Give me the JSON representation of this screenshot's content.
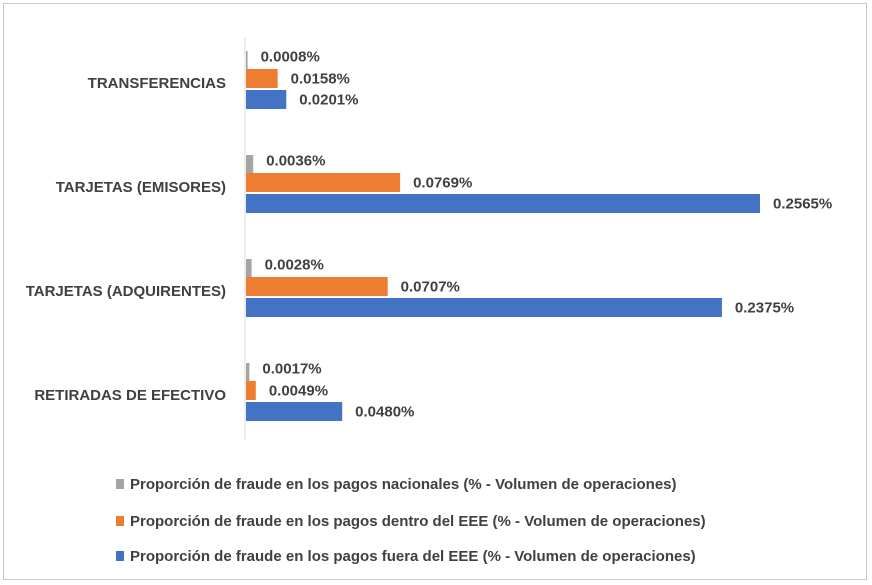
{
  "chart_data": {
    "type": "bar",
    "orientation": "horizontal",
    "categories": [
      "TRANSFERENCIAS",
      "TARJETAS (EMISORES)",
      "TARJETAS (ADQUIRENTES)",
      "RETIRADAS DE EFECTIVO"
    ],
    "series": [
      {
        "name": "Proporción de fraude en los pagos nacionales (% - Volumen de operaciones)",
        "color": "#a5a5a5",
        "values": [
          0.0008,
          0.0036,
          0.0028,
          0.0017
        ],
        "labels": [
          "0.0008%",
          "0.0036%",
          "0.0028%",
          "0.0017%"
        ]
      },
      {
        "name": "Proporción de fraude en los pagos dentro del EEE (% - Volumen de operaciones)",
        "color": "#ed7d31",
        "values": [
          0.0158,
          0.0769,
          0.0707,
          0.0049
        ],
        "labels": [
          "0.0158%",
          "0.0769%",
          "0.0707%",
          "0.0049%"
        ]
      },
      {
        "name": "Proporción de fraude en los pagos fuera del EEE (% - Volumen de operaciones)",
        "color": "#4472c4",
        "values": [
          0.0201,
          0.2565,
          0.2375,
          0.048
        ],
        "labels": [
          "0.0201%",
          "0.2565%",
          "0.2375%",
          "0.0480%"
        ]
      }
    ],
    "xlim": [
      0,
      0.2565
    ],
    "grid": false,
    "legend_position": "bottom",
    "title": "",
    "xlabel": "",
    "ylabel": ""
  }
}
